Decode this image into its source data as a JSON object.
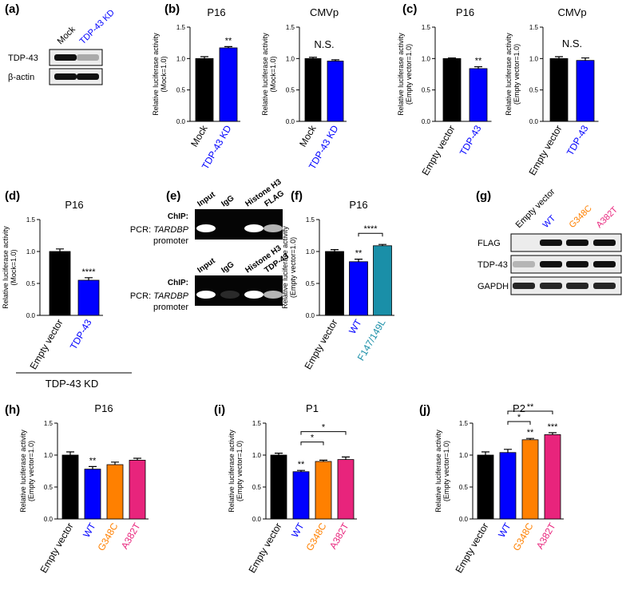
{
  "chart_data": [
    {
      "type": "bar",
      "panel": "(b)",
      "title": "P16",
      "ylabel": [
        "Relative luciferase activity",
        "(Mock=1.0)"
      ],
      "categories": [
        "Mock",
        "TDP-43 KD"
      ],
      "colors": [
        "#000000",
        "#0000ff"
      ],
      "values": [
        1.0,
        1.17
      ],
      "errors": [
        0.03,
        0.02
      ],
      "stars": [
        null,
        "**"
      ],
      "ylim": [
        0,
        1.5
      ],
      "yticks": [
        {
          "value": 0,
          "label": "0.0"
        },
        {
          "value": 0.5,
          "label": "0.5"
        },
        {
          "value": 1,
          "label": "1.0"
        },
        {
          "value": 1.5,
          "label": "1.5"
        }
      ]
    },
    {
      "type": "bar",
      "title": "CMVp",
      "ylabel": [
        "Relative luciferase activity",
        "(Mock=1.0)"
      ],
      "categories": [
        "Mock",
        "TDP-43 KD"
      ],
      "colors": [
        "#000000",
        "#0000ff"
      ],
      "values": [
        1.0,
        0.96
      ],
      "errors": [
        0.02,
        0.02
      ],
      "note": "N.S.",
      "ylim": [
        0,
        1.5
      ],
      "yticks": [
        {
          "value": 0,
          "label": "0.0"
        },
        {
          "value": 0.5,
          "label": "0.5"
        },
        {
          "value": 1,
          "label": "1.0"
        },
        {
          "value": 1.5,
          "label": "1.5"
        }
      ]
    },
    {
      "type": "bar",
      "panel": "(c)",
      "title": "P16",
      "ylabel": [
        "Relative luciferase activity",
        "(Empty vector=1.0)"
      ],
      "categories": [
        "Empty vector",
        "TDP-43"
      ],
      "colors": [
        "#000000",
        "#0000ff"
      ],
      "values": [
        1.0,
        0.84
      ],
      "errors": [
        0.01,
        0.03
      ],
      "stars": [
        null,
        "**"
      ],
      "ylim": [
        0,
        1.5
      ],
      "yticks": [
        {
          "value": 0,
          "label": "0.0"
        },
        {
          "value": 0.5,
          "label": "0.5"
        },
        {
          "value": 1,
          "label": "1.0"
        },
        {
          "value": 1.5,
          "label": "1.5"
        }
      ]
    },
    {
      "type": "bar",
      "title": "CMVp",
      "ylabel": [
        "Relative luciferase activity",
        "(Empty vector=1.0)"
      ],
      "categories": [
        "Empty vector",
        "TDP-43"
      ],
      "colors": [
        "#000000",
        "#0000ff"
      ],
      "values": [
        1.0,
        0.97
      ],
      "errors": [
        0.03,
        0.04
      ],
      "note": "N.S.",
      "ylim": [
        0,
        1.5
      ],
      "yticks": [
        {
          "value": 0,
          "label": "0.0"
        },
        {
          "value": 0.5,
          "label": "0.5"
        },
        {
          "value": 1,
          "label": "1.0"
        },
        {
          "value": 1.5,
          "label": "1.5"
        }
      ]
    },
    {
      "type": "bar",
      "panel": "(d)",
      "title": "P16",
      "ylabel": [
        "Relative luciferase activity",
        "(Mock=1.0)"
      ],
      "categories": [
        "Empty vector",
        "TDP-43"
      ],
      "colors": [
        "#000000",
        "#0000ff"
      ],
      "values": [
        1.0,
        0.55
      ],
      "errors": [
        0.04,
        0.04
      ],
      "stars": [
        null,
        "****"
      ],
      "group_label": "TDP-43 KD",
      "ylim": [
        0,
        1.5
      ],
      "yticks": [
        {
          "value": 0,
          "label": "0.0"
        },
        {
          "value": 0.5,
          "label": "0.5"
        },
        {
          "value": 1,
          "label": "1.0"
        },
        {
          "value": 1.5,
          "label": "1.5"
        }
      ]
    },
    {
      "type": "bar",
      "panel": "(f)",
      "title": "P16",
      "ylabel": [
        "Relative luciferase activity",
        "(Empty vector=1.0)"
      ],
      "categories": [
        "Empty vector",
        "WT",
        "F147/149L"
      ],
      "colors": [
        "#000000",
        "#0000ff",
        "#1a8fa8"
      ],
      "values": [
        1.0,
        0.84,
        1.09
      ],
      "errors": [
        0.03,
        0.04,
        0.02
      ],
      "stars": [
        null,
        "**",
        null
      ],
      "brackets": [
        {
          "between": [
            "WT",
            "F147/149L"
          ],
          "text": "****"
        }
      ],
      "ylim": [
        0,
        1.5
      ],
      "yticks": [
        {
          "value": 0,
          "label": "0.0"
        },
        {
          "value": 0.5,
          "label": "0.5"
        },
        {
          "value": 1,
          "label": "1.0"
        },
        {
          "value": 1.5,
          "label": "1.5"
        }
      ]
    },
    {
      "type": "bar",
      "panel": "(h)",
      "title": "P16",
      "ylabel": [
        "Relative luciferase activity",
        "(Empty vector=1.0)"
      ],
      "categories": [
        "Empty vector",
        "WT",
        "G348C",
        "A382T"
      ],
      "colors": [
        "#000000",
        "#0000ff",
        "#ff8000",
        "#e8247c"
      ],
      "values": [
        1.0,
        0.78,
        0.85,
        0.92
      ],
      "errors": [
        0.05,
        0.04,
        0.04,
        0.03
      ],
      "stars": [
        null,
        "**",
        null,
        null
      ],
      "ylim": [
        0,
        1.5
      ],
      "yticks": [
        {
          "value": 0,
          "label": "0.0"
        },
        {
          "value": 0.5,
          "label": "0.5"
        },
        {
          "value": 1,
          "label": "1.0"
        },
        {
          "value": 1.5,
          "label": "1.5"
        }
      ]
    },
    {
      "type": "bar",
      "panel": "(i)",
      "title": "P1",
      "ylabel": [
        "Relative luciferase activity",
        "(Empty vector=1.0)"
      ],
      "categories": [
        "Empty vector",
        "WT",
        "G348C",
        "A382T"
      ],
      "colors": [
        "#000000",
        "#0000ff",
        "#ff8000",
        "#e8247c"
      ],
      "values": [
        1.0,
        0.74,
        0.9,
        0.93
      ],
      "errors": [
        0.03,
        0.02,
        0.02,
        0.04
      ],
      "stars": [
        null,
        "**",
        null,
        null
      ],
      "brackets": [
        {
          "between": [
            "WT",
            "G348C"
          ],
          "text": "*"
        },
        {
          "between": [
            "WT",
            "A382T"
          ],
          "text": "*"
        }
      ],
      "ylim": [
        0,
        1.5
      ],
      "yticks": [
        {
          "value": 0,
          "label": "0.0"
        },
        {
          "value": 0.5,
          "label": "0.5"
        },
        {
          "value": 1,
          "label": "1.0"
        },
        {
          "value": 1.5,
          "label": "1.5"
        }
      ]
    },
    {
      "type": "bar",
      "panel": "(j)",
      "title": "P2",
      "ylabel": [
        "Relative luciferase activity",
        "(Empty vector=1.0)"
      ],
      "categories": [
        "Empty vector",
        "WT",
        "G348C",
        "A382T"
      ],
      "colors": [
        "#000000",
        "#0000ff",
        "#ff8000",
        "#e8247c"
      ],
      "values": [
        1.0,
        1.04,
        1.24,
        1.32
      ],
      "errors": [
        0.05,
        0.05,
        0.02,
        0.03
      ],
      "stars": [
        null,
        null,
        "**",
        "***"
      ],
      "brackets": [
        {
          "between": [
            "WT",
            "G348C"
          ],
          "text": "*"
        },
        {
          "between": [
            "WT",
            "A382T"
          ],
          "text": "**"
        }
      ],
      "ylim": [
        0,
        1.5
      ],
      "yticks": [
        {
          "value": 0,
          "label": "0.0"
        },
        {
          "value": 0.5,
          "label": "0.5"
        },
        {
          "value": 1,
          "label": "1.0"
        },
        {
          "value": 1.5,
          "label": "1.5"
        }
      ]
    }
  ],
  "blots": [
    {
      "panel": "(a)",
      "lanes": [
        "Mock",
        "TDP-43 KD"
      ],
      "lane_colors": [
        "#000000",
        "#0000ff"
      ],
      "rows": [
        "TDP-43",
        "β-actin"
      ]
    },
    {
      "panel": "(g)",
      "lanes": [
        "Empty vector",
        "WT",
        "G348C",
        "A382T"
      ],
      "lane_colors": [
        "#000000",
        "#0000ff",
        "#ff8000",
        "#e8247c"
      ],
      "rows": [
        "FLAG",
        "TDP-43",
        "GAPDH"
      ]
    }
  ],
  "chip": {
    "panel": "(e)",
    "gels": [
      {
        "method": "ChIP:",
        "pcr": "PCR:",
        "gene": "TARDBP",
        "region": "promoter",
        "lanes": [
          "Input",
          "IgG",
          "Histone H3",
          "FLAG"
        ]
      },
      {
        "method": "ChIP:",
        "pcr": "PCR:",
        "gene": "TARDBP",
        "region": "promoter",
        "lanes": [
          "Input",
          "IgG",
          "Histone H3",
          "TDP-43"
        ]
      }
    ]
  }
}
